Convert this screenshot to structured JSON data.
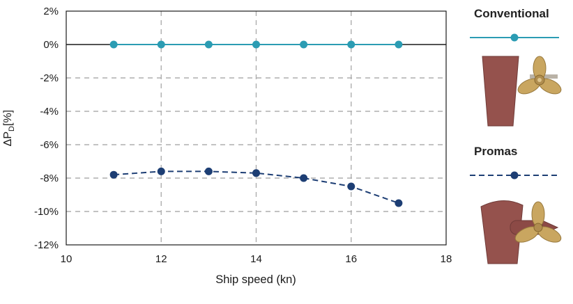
{
  "chart_data": {
    "type": "line",
    "x": [
      11,
      12,
      13,
      14,
      15,
      16,
      17
    ],
    "series": [
      {
        "name": "Conventional",
        "values": [
          0,
          0,
          0,
          0,
          0,
          0,
          0
        ],
        "color": "#2b9cb3",
        "style": "solid"
      },
      {
        "name": "Promas",
        "values": [
          -7.8,
          -7.6,
          -7.6,
          -7.7,
          -8.0,
          -8.5,
          -9.5
        ],
        "color": "#1d3e74",
        "style": "dashed"
      }
    ],
    "title": "",
    "xlabel": "Ship speed (kn)",
    "ylabel_parts": {
      "prefix": "ΔP",
      "sub": "D",
      "suffix": "[%]"
    },
    "xlim": [
      10,
      18
    ],
    "ylim": [
      -12,
      2
    ],
    "xticks": [
      10,
      12,
      14,
      16,
      18
    ],
    "xgrid": [
      12,
      14,
      16
    ],
    "yticks": [
      2,
      0,
      -2,
      -4,
      -6,
      -8,
      -10,
      -12
    ],
    "ytick_labels": [
      "2%",
      "0%",
      "-2%",
      "-4%",
      "-6%",
      "-8%",
      "-10%",
      "-12%"
    ],
    "grid": "dashed",
    "legend_position": "right"
  },
  "legend": {
    "conventional": {
      "label": "Conventional"
    },
    "promas": {
      "label": "Promas"
    }
  },
  "colors": {
    "conventional_line": "#2b9cb3",
    "promas_line": "#1d3e74",
    "rudder": "#95524d",
    "propeller": "#c9a660",
    "grid": "#aeaeae",
    "axis": "#1a1a1a"
  }
}
